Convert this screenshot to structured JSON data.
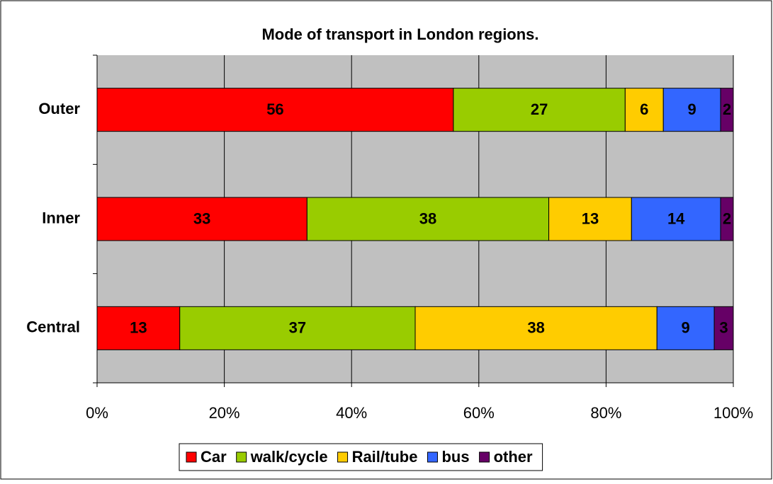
{
  "chart_data": {
    "type": "stacked_bar_horizontal",
    "title": "Mode of transport in London regions.",
    "categories": [
      "Outer",
      "Inner",
      "Central"
    ],
    "series": [
      {
        "name": "Car",
        "color": "#ff0000",
        "values": [
          56,
          33,
          13
        ]
      },
      {
        "name": "walk/cycle",
        "color": "#99cc00",
        "values": [
          27,
          38,
          37
        ]
      },
      {
        "name": "Rail/tube",
        "color": "#ffcc00",
        "values": [
          6,
          13,
          38
        ]
      },
      {
        "name": "bus",
        "color": "#3366ff",
        "values": [
          9,
          14,
          9
        ]
      },
      {
        "name": "other",
        "color": "#660066",
        "values": [
          2,
          2,
          3
        ]
      }
    ],
    "xlim": [
      0,
      100
    ],
    "xticks": [
      {
        "value": 0,
        "label": "0%"
      },
      {
        "value": 20,
        "label": "20%"
      },
      {
        "value": 40,
        "label": "40%"
      },
      {
        "value": 60,
        "label": "60%"
      },
      {
        "value": 80,
        "label": "80%"
      },
      {
        "value": 100,
        "label": "100%"
      }
    ],
    "grid": true,
    "legend": "bottom"
  }
}
